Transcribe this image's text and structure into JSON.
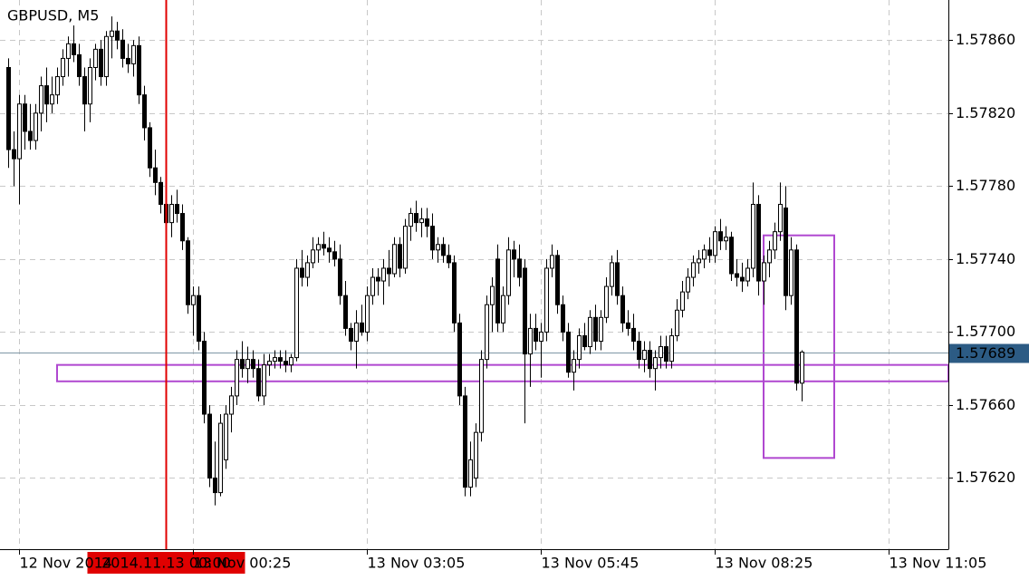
{
  "chart_data": {
    "type": "candlestick",
    "title": "GBPUSD, M5",
    "up_color": "#ffffff",
    "down_color": "#000000",
    "outline_color": "#000000",
    "grid": true,
    "ylim": [
      1.57581,
      1.57882
    ],
    "yticks": [
      {
        "value": 1.5762,
        "label": "1.57620"
      },
      {
        "value": 1.5766,
        "label": "1.57660"
      },
      {
        "value": 1.577,
        "label": "1.57700"
      },
      {
        "value": 1.5774,
        "label": "1.57740"
      },
      {
        "value": 1.5778,
        "label": "1.57780"
      },
      {
        "value": 1.5782,
        "label": "1.57820"
      },
      {
        "value": 1.5786,
        "label": "1.57860"
      }
    ],
    "xlim": [
      -1.5,
      173
    ],
    "xticks": [
      {
        "value": 2,
        "label": "12 Nov 2014"
      },
      {
        "value": 34,
        "label": "13 Nov 00:25"
      },
      {
        "value": 66,
        "label": "13 Nov 03:05"
      },
      {
        "value": 98,
        "label": "13 Nov 05:45"
      },
      {
        "value": 130,
        "label": "13 Nov 08:25"
      },
      {
        "value": 162,
        "label": "13 Nov 11:05"
      }
    ],
    "crosshair": {
      "x": 29,
      "label": "2014.11.13 00:00",
      "color": "#e00000"
    },
    "last_price": 1.57689,
    "last_price_color": "#2c5b84",
    "rectangles": [
      {
        "x": [
          9,
          173
        ],
        "y": [
          1.57673,
          1.57682
        ],
        "color": "#b048d0"
      },
      {
        "x": [
          139,
          152
        ],
        "y": [
          1.57631,
          1.57753
        ],
        "color": "#b048d0"
      }
    ],
    "open": [
      1.57845,
      1.578,
      1.57795,
      1.57825,
      1.5781,
      1.57805,
      1.5782,
      1.57835,
      1.57825,
      1.5783,
      1.5784,
      1.5785,
      1.57858,
      1.57852,
      1.5784,
      1.57825,
      1.57845,
      1.57855,
      1.5784,
      1.57862,
      1.57865,
      1.5786,
      1.5785,
      1.57847,
      1.57857,
      1.5783,
      1.57812,
      1.5779,
      1.57782,
      1.5777,
      1.5776,
      1.5777,
      1.57765,
      1.5775,
      1.57715,
      1.5772,
      1.57695,
      1.57655,
      1.5762,
      1.57612,
      1.5763,
      1.57655,
      1.57665,
      1.57685,
      1.5768,
      1.57685,
      1.5768,
      1.57665,
      1.57682,
      1.57684,
      1.57686,
      1.57684,
      1.57682,
      1.57686,
      1.57735,
      1.5773,
      1.57738,
      1.57745,
      1.57748,
      1.57746,
      1.57744,
      1.5774,
      1.5772,
      1.57702,
      1.57695,
      1.57705,
      1.577,
      1.5772,
      1.5773,
      1.57728,
      1.57735,
      1.57732,
      1.57748,
      1.57735,
      1.57758,
      1.57765,
      1.5776,
      1.57762,
      1.57758,
      1.57745,
      1.57748,
      1.57742,
      1.57738,
      1.57705,
      1.57665,
      1.57615,
      1.5762,
      1.57645,
      1.57685,
      1.57715,
      1.5774,
      1.57705,
      1.5772,
      1.57745,
      1.5774,
      1.57735,
      1.57688,
      1.57702,
      1.57695,
      1.577,
      1.57735,
      1.57742,
      1.57715,
      1.577,
      1.57678,
      1.57685,
      1.57698,
      1.57692,
      1.57708,
      1.57695,
      1.57708,
      1.57725,
      1.57738,
      1.5772,
      1.57705,
      1.57702,
      1.57695,
      1.57685,
      1.5769,
      1.5768,
      1.57686,
      1.57692,
      1.57684,
      1.57698,
      1.57712,
      1.57722,
      1.5773,
      1.57738,
      1.5774,
      1.57745,
      1.57742,
      1.57755,
      1.5775,
      1.57752,
      1.57732,
      1.5773,
      1.57728,
      1.57735,
      1.5777,
      1.57728,
      1.57738,
      1.57745,
      1.57755,
      1.57768,
      1.5772,
      1.57745,
      1.57672
    ],
    "high": [
      1.5785,
      1.5781,
      1.5783,
      1.5783,
      1.57825,
      1.57825,
      1.5784,
      1.57845,
      1.5784,
      1.57845,
      1.57855,
      1.57862,
      1.57868,
      1.57858,
      1.57845,
      1.5785,
      1.57858,
      1.5786,
      1.57865,
      1.57873,
      1.5787,
      1.57866,
      1.57858,
      1.5786,
      1.57862,
      1.57835,
      1.57815,
      1.578,
      1.57785,
      1.57775,
      1.57775,
      1.57778,
      1.5777,
      1.57752,
      1.57725,
      1.57725,
      1.577,
      1.5766,
      1.5764,
      1.57655,
      1.5766,
      1.5767,
      1.5769,
      1.57695,
      1.57692,
      1.5769,
      1.57685,
      1.57688,
      1.57688,
      1.5769,
      1.5769,
      1.5769,
      1.57688,
      1.5774,
      1.57745,
      1.57742,
      1.57752,
      1.57752,
      1.57755,
      1.57752,
      1.5775,
      1.57748,
      1.57728,
      1.57705,
      1.57712,
      1.57715,
      1.57725,
      1.57735,
      1.57735,
      1.5774,
      1.57745,
      1.57752,
      1.57752,
      1.57762,
      1.57768,
      1.57772,
      1.57768,
      1.57768,
      1.57765,
      1.57752,
      1.57752,
      1.57748,
      1.57742,
      1.5771,
      1.5767,
      1.5764,
      1.5765,
      1.5769,
      1.5772,
      1.5773,
      1.57748,
      1.57725,
      1.57752,
      1.5775,
      1.57748,
      1.5774,
      1.5771,
      1.5771,
      1.57705,
      1.5774,
      1.57748,
      1.57745,
      1.5772,
      1.57705,
      1.5769,
      1.57702,
      1.57705,
      1.57712,
      1.57715,
      1.57712,
      1.5773,
      1.57742,
      1.57745,
      1.57725,
      1.57712,
      1.5771,
      1.577,
      1.57695,
      1.57695,
      1.5769,
      1.57698,
      1.57698,
      1.57702,
      1.57718,
      1.57728,
      1.57735,
      1.57742,
      1.57745,
      1.57748,
      1.57752,
      1.57758,
      1.57762,
      1.57758,
      1.57755,
      1.5774,
      1.57738,
      1.5774,
      1.57782,
      1.57775,
      1.57742,
      1.5775,
      1.5776,
      1.57782,
      1.5778,
      1.57752,
      1.57748,
      1.5769
    ],
    "low": [
      1.5779,
      1.5778,
      1.5777,
      1.578,
      1.578,
      1.578,
      1.5781,
      1.57815,
      1.5782,
      1.57825,
      1.57835,
      1.5784,
      1.57848,
      1.57835,
      1.5781,
      1.57815,
      1.57838,
      1.57835,
      1.57835,
      1.5785,
      1.57855,
      1.57845,
      1.57842,
      1.5784,
      1.57825,
      1.57805,
      1.57785,
      1.57775,
      1.57765,
      1.57755,
      1.57752,
      1.5776,
      1.57745,
      1.5771,
      1.57698,
      1.5769,
      1.5765,
      1.57615,
      1.57605,
      1.5761,
      1.57625,
      1.57645,
      1.5766,
      1.57675,
      1.57672,
      1.57675,
      1.57662,
      1.5766,
      1.57676,
      1.5768,
      1.5768,
      1.57678,
      1.57678,
      1.57684,
      1.57725,
      1.57725,
      1.57735,
      1.57738,
      1.57742,
      1.57738,
      1.57736,
      1.57715,
      1.57698,
      1.5769,
      1.5768,
      1.57698,
      1.57695,
      1.57715,
      1.5772,
      1.57715,
      1.57725,
      1.5773,
      1.5773,
      1.57732,
      1.5775,
      1.57755,
      1.57752,
      1.57752,
      1.5774,
      1.57738,
      1.57738,
      1.57735,
      1.577,
      1.5766,
      1.5761,
      1.5761,
      1.57615,
      1.5764,
      1.5768,
      1.577,
      1.577,
      1.577,
      1.57715,
      1.5773,
      1.57725,
      1.5765,
      1.5767,
      1.5769,
      1.57675,
      1.57695,
      1.5773,
      1.5771,
      1.57695,
      1.57675,
      1.57668,
      1.5768,
      1.5769,
      1.57688,
      1.5769,
      1.5769,
      1.57705,
      1.5772,
      1.57715,
      1.577,
      1.57698,
      1.5769,
      1.5768,
      1.57678,
      1.57675,
      1.57668,
      1.5768,
      1.5768,
      1.5768,
      1.57695,
      1.57708,
      1.57718,
      1.57725,
      1.57732,
      1.57735,
      1.57738,
      1.57738,
      1.57745,
      1.57745,
      1.57728,
      1.57725,
      1.57722,
      1.57725,
      1.5773,
      1.5772,
      1.57715,
      1.5773,
      1.5774,
      1.5775,
      1.57712,
      1.57715,
      1.57668,
      1.57662
    ],
    "close": [
      1.578,
      1.57795,
      1.57825,
      1.5781,
      1.57805,
      1.5782,
      1.57835,
      1.57825,
      1.5783,
      1.5784,
      1.5785,
      1.57858,
      1.57852,
      1.5784,
      1.57825,
      1.57845,
      1.57855,
      1.5784,
      1.57862,
      1.57865,
      1.5786,
      1.5785,
      1.57847,
      1.57857,
      1.5783,
      1.57812,
      1.5779,
      1.57782,
      1.5777,
      1.5776,
      1.5777,
      1.57765,
      1.5775,
      1.57715,
      1.5772,
      1.57695,
      1.57655,
      1.5762,
      1.57612,
      1.5765,
      1.57655,
      1.57665,
      1.57685,
      1.5768,
      1.57685,
      1.5768,
      1.57665,
      1.57682,
      1.57684,
      1.57686,
      1.57684,
      1.57682,
      1.57686,
      1.57735,
      1.5773,
      1.57738,
      1.57745,
      1.57748,
      1.57746,
      1.57744,
      1.5774,
      1.5772,
      1.57702,
      1.57695,
      1.57705,
      1.577,
      1.5772,
      1.5773,
      1.57728,
      1.57735,
      1.57732,
      1.57748,
      1.57735,
      1.57758,
      1.57765,
      1.5776,
      1.57762,
      1.57758,
      1.57745,
      1.57748,
      1.57742,
      1.57738,
      1.57705,
      1.57665,
      1.57615,
      1.5763,
      1.57645,
      1.57685,
      1.57715,
      1.57725,
      1.57705,
      1.5772,
      1.57745,
      1.5774,
      1.5773,
      1.57688,
      1.57702,
      1.57695,
      1.577,
      1.57735,
      1.57742,
      1.57715,
      1.577,
      1.57678,
      1.57685,
      1.57698,
      1.57692,
      1.57708,
      1.57695,
      1.57708,
      1.57725,
      1.57738,
      1.5772,
      1.57705,
      1.57702,
      1.57695,
      1.57685,
      1.5769,
      1.5768,
      1.57686,
      1.57692,
      1.57684,
      1.57698,
      1.57712,
      1.57722,
      1.5773,
      1.57738,
      1.5774,
      1.57745,
      1.57742,
      1.57755,
      1.5775,
      1.57752,
      1.57732,
      1.5773,
      1.57728,
      1.57735,
      1.5777,
      1.57728,
      1.57738,
      1.57745,
      1.57755,
      1.5777,
      1.5772,
      1.57745,
      1.57672,
      1.57689
    ]
  }
}
